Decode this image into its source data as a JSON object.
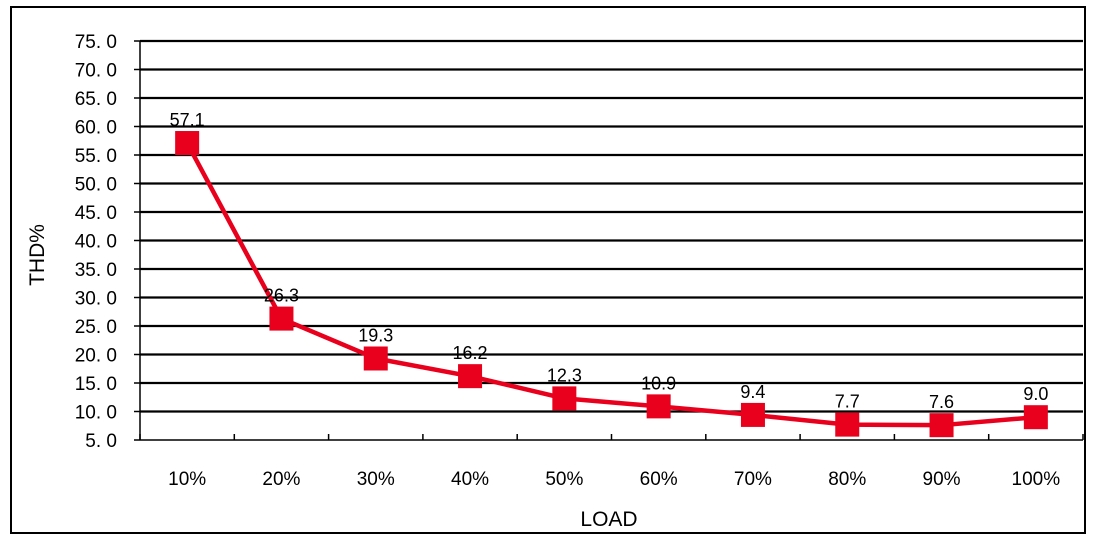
{
  "chart_data": {
    "type": "line",
    "title": "",
    "xlabel": "LOAD",
    "ylabel": "THD%",
    "categories": [
      "10%",
      "20%",
      "30%",
      "40%",
      "50%",
      "60%",
      "70%",
      "80%",
      "90%",
      "100%"
    ],
    "series": [
      {
        "values": [
          57.1,
          26.3,
          19.3,
          16.2,
          12.3,
          10.9,
          9.4,
          7.7,
          7.6,
          9.0
        ],
        "labels": [
          "57.1",
          "26.3",
          "19.3",
          "16.2",
          "12.3",
          "10.9",
          "9.4",
          "7.7",
          "7.6",
          "9.0"
        ],
        "color": "#e8001c",
        "marker": "square"
      }
    ],
    "ylim": [
      5,
      75
    ],
    "yticks": [
      5,
      10,
      15,
      20,
      25,
      30,
      35,
      40,
      45,
      50,
      55,
      60,
      65,
      70,
      75
    ],
    "ytick_labels": [
      "5. 0",
      "10. 0",
      "15. 0",
      "20. 0",
      "25. 0",
      "30. 0",
      "35. 0",
      "40. 0",
      "45. 0",
      "50. 0",
      "55. 0",
      "60. 0",
      "65. 0",
      "70. 0",
      "75. 0"
    ],
    "grid": true,
    "legend": "none"
  }
}
